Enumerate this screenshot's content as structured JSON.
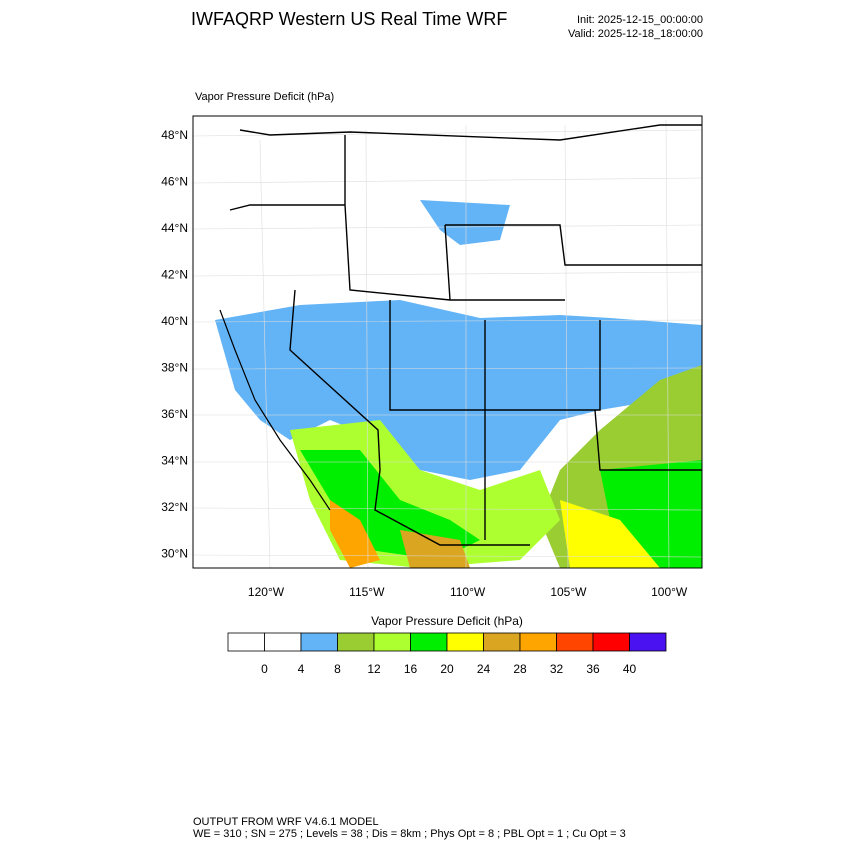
{
  "header": {
    "title": "IWFAQRP Western US Real Time WRF",
    "init": "Init: 2025-12-15_00:00:00",
    "valid": "Valid: 2025-12-18_18:00:00"
  },
  "map": {
    "field_label": "Vapor Pressure Deficit   (hPa)",
    "lat_labels": [
      "48°N",
      "46°N",
      "44°N",
      "42°N",
      "40°N",
      "38°N",
      "36°N",
      "34°N",
      "32°N",
      "30°N"
    ],
    "lon_labels": [
      "120°W",
      "115°W",
      "110°W",
      "105°W",
      "100°W"
    ]
  },
  "colorbar": {
    "title": "Vapor Pressure Deficit  (hPa)",
    "colors": [
      "#ffffff",
      "#ffffff",
      "#63b4f7",
      "#9acd32",
      "#adff2f",
      "#00ee00",
      "#ffff00",
      "#daa520",
      "#ffa500",
      "#ff4500",
      "#ff0000",
      "#4a12f0"
    ],
    "levels": [
      0,
      4,
      8,
      12,
      16,
      20,
      24,
      28,
      32,
      36,
      40
    ]
  },
  "footer": {
    "line1": "OUTPUT FROM WRF V4.6.1 MODEL",
    "line2": "WE = 310 ; SN = 275 ; Levels = 38 ; Dis = 8km ; Phys Opt = 8 ; PBL Opt = 1 ; Cu Opt = 3"
  }
}
